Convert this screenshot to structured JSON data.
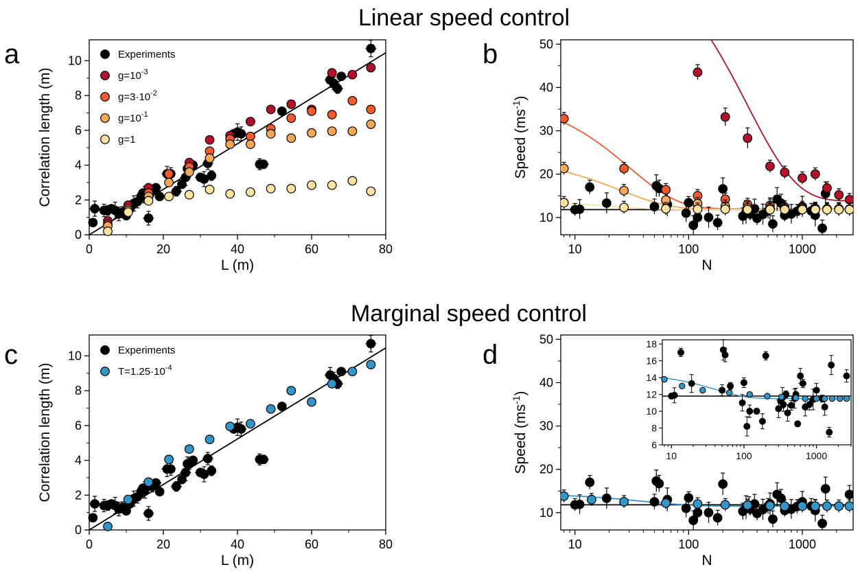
{
  "titles": {
    "top": "Linear speed control",
    "bottom": "Marginal speed control"
  },
  "colors": {
    "experiments": "#000000",
    "g_1e-3": "#b5112a",
    "g_3e-2": "#f05a2c",
    "g_1e-1": "#f6a857",
    "g_1": "#fbe29e",
    "t_1.25e-4": "#3396c8"
  },
  "panels": {
    "a": {
      "letter": "a",
      "xlabel": "L (m)",
      "ylabel": "Correlation length (m)",
      "xticks": [
        "0",
        "20",
        "40",
        "60",
        "80"
      ],
      "yticks": [
        "0",
        "2",
        "4",
        "6",
        "8",
        "10"
      ],
      "legend": [
        {
          "label": "Experiments"
        },
        {
          "label": "g=10",
          "sup": "-3"
        },
        {
          "label": "g=3·10",
          "sup": "-2"
        },
        {
          "label": "g=10",
          "sup": "-1"
        },
        {
          "label": "g=1"
        }
      ]
    },
    "b": {
      "letter": "b",
      "xlabel": "N",
      "ylabel": "Speed (ms",
      "ylabel_sup": "-1",
      "ylabel_end": ")",
      "xticks": [
        "10",
        "100",
        "1000"
      ],
      "yticks": [
        "10",
        "20",
        "30",
        "40",
        "50"
      ]
    },
    "c": {
      "letter": "c",
      "xlabel": "L (m)",
      "ylabel": "Correlation length (m)",
      "xticks": [
        "0",
        "20",
        "40",
        "60",
        "80"
      ],
      "yticks": [
        "0",
        "2",
        "4",
        "6",
        "8",
        "10"
      ],
      "legend": [
        {
          "label": "Experiments"
        },
        {
          "label": "T=1.25·10",
          "sup": "-4"
        }
      ]
    },
    "d": {
      "letter": "d",
      "xlabel": "N",
      "ylabel": "Speed (ms",
      "ylabel_sup": "-1",
      "ylabel_end": ")",
      "xticks": [
        "10",
        "100",
        "1000"
      ],
      "yticks": [
        "10",
        "20",
        "30",
        "40",
        "50"
      ],
      "inset": {
        "xticks": [
          "10",
          "100",
          "1000"
        ],
        "yticks": [
          "6",
          "8",
          "10",
          "12",
          "14",
          "16",
          "18"
        ]
      }
    }
  },
  "chart_data": [
    {
      "panel": "a",
      "type": "scatter",
      "xlabel": "L (m)",
      "ylabel": "Correlation length (m)",
      "xlim": [
        0,
        80
      ],
      "ylim": [
        0,
        11.2
      ],
      "fit_line": {
        "slope": 0.1307,
        "intercept": 0
      },
      "series": [
        {
          "name": "Experiments",
          "x": [
            1,
            1.5,
            4,
            5,
            6,
            7,
            8,
            9,
            10,
            11,
            12,
            13,
            14,
            14.5,
            15,
            16,
            17,
            18,
            19,
            21,
            22,
            23.5,
            25,
            26,
            26.5,
            27,
            28,
            30,
            31,
            32,
            33,
            39,
            40,
            41,
            46,
            47,
            52,
            65,
            66,
            67,
            68,
            76
          ],
          "y": [
            0.7,
            1.5,
            1.4,
            1.4,
            1.5,
            1.4,
            1.2,
            1.3,
            1.1,
            1.5,
            1.8,
            1.9,
            2.2,
            2.4,
            2.3,
            0.95,
            2.5,
            2.7,
            2.2,
            3.5,
            3.5,
            2.5,
            2.9,
            3.3,
            3.8,
            3.8,
            4.0,
            3.3,
            3.2,
            4.1,
            3.4,
            5.8,
            5.9,
            5.8,
            4.05,
            4.05,
            7.1,
            8.9,
            8.7,
            8.4,
            9.1,
            10.7
          ]
        },
        {
          "name": "g=10^-3",
          "x": [
            5,
            10.5,
            16,
            21.5,
            27,
            32.5,
            38,
            43.5,
            49,
            54.5,
            60,
            65.5,
            71,
            76
          ],
          "y": [
            0.8,
            1.7,
            2.7,
            3.5,
            4.15,
            5.45,
            5.7,
            6.5,
            7.2,
            7.5,
            7.2,
            9.3,
            9.2,
            9.6
          ]
        },
        {
          "name": "g=3·10^-2",
          "x": [
            5,
            10.5,
            16,
            21.5,
            27,
            32.5,
            38,
            43.5,
            49,
            54.5,
            60,
            65.5,
            71,
            76
          ],
          "y": [
            0.6,
            1.5,
            2.4,
            3.5,
            3.9,
            4.8,
            5.5,
            5.65,
            6.1,
            6.7,
            7.1,
            6.9,
            7.7,
            7.2
          ]
        },
        {
          "name": "g=10^-1",
          "x": [
            5,
            10.5,
            16,
            21.5,
            27,
            32.5,
            38,
            43.5,
            49,
            54.5,
            60,
            65.5,
            71,
            76
          ],
          "y": [
            0.5,
            1.4,
            2.2,
            3.0,
            3.6,
            4.4,
            5.2,
            5.2,
            5.8,
            5.55,
            5.85,
            5.95,
            5.95,
            6.35
          ]
        },
        {
          "name": "g=1",
          "x": [
            5,
            10.5,
            16,
            21.5,
            27,
            32.5,
            38,
            43.5,
            49,
            54.5,
            60,
            65.5,
            71,
            76
          ],
          "y": [
            0.2,
            1.3,
            1.95,
            2.2,
            2.3,
            2.6,
            2.35,
            2.45,
            2.65,
            2.65,
            2.85,
            2.85,
            3.1,
            2.5
          ]
        }
      ]
    },
    {
      "panel": "b",
      "type": "scatter",
      "xscale": "log",
      "xlabel": "N",
      "ylabel": "Speed (ms-1)",
      "xlim": [
        7.5,
        2800
      ],
      "ylim": [
        6,
        51
      ],
      "fit_line_y": 11.8,
      "series": [
        {
          "name": "Experiments",
          "x": [
            10,
            11,
            13.5,
            19,
            50,
            52,
            55,
            65,
            95,
            100,
            110,
            120,
            150,
            180,
            200,
            300,
            320,
            340,
            350,
            380,
            400,
            450,
            500,
            520,
            550,
            600,
            650,
            700,
            800,
            900,
            1000,
            1200,
            1300,
            1500,
            1600
          ],
          "y": [
            11.8,
            11.9,
            17.0,
            13.3,
            12.5,
            17.3,
            16.7,
            13.0,
            11.0,
            13.4,
            8.2,
            10.0,
            10.0,
            8.8,
            16.6,
            10.3,
            11.2,
            11.6,
            10.8,
            12.0,
            9.8,
            10.7,
            11.5,
            12.0,
            8.5,
            14.2,
            13.3,
            10.5,
            10.8,
            11.4,
            12.5,
            11.5,
            10.5,
            7.5,
            15.5
          ]
        },
        {
          "name": "g=10^-3",
          "x": [
            120,
            210,
            330,
            520,
            700,
            1000,
            1300,
            1650,
            2100,
            2600
          ],
          "y": [
            43.5,
            33.2,
            28.3,
            21.8,
            20.4,
            19.1,
            20.0,
            16.8,
            15.2,
            14.1
          ]
        },
        {
          "name": "g=3·10^-2",
          "x": [
            8,
            27,
            63,
            120,
            210,
            330,
            520,
            700,
            1000,
            1300,
            1650,
            2100,
            2600
          ],
          "y": [
            32.8,
            21.3,
            16.4,
            15.0,
            14.2,
            13.0,
            12.8,
            12.4,
            12.3,
            12.1,
            12.0,
            12.0,
            11.9
          ]
        },
        {
          "name": "g=10^-1",
          "x": [
            8,
            27,
            63,
            120,
            210,
            330,
            520,
            700,
            1000,
            1300,
            1650,
            2100,
            2600
          ],
          "y": [
            21.3,
            16.2,
            14.0,
            13.2,
            12.6,
            12.2,
            12.1,
            12.0,
            12.0,
            11.9,
            11.9,
            11.9,
            11.9
          ]
        },
        {
          "name": "g=1",
          "x": [
            8,
            27,
            63,
            120,
            210,
            330,
            520,
            700,
            1000,
            1300,
            1650,
            2100,
            2600
          ],
          "y": [
            13.4,
            12.3,
            12.0,
            11.9,
            11.9,
            11.8,
            11.8,
            11.8,
            11.8,
            11.8,
            11.8,
            11.8,
            11.8
          ]
        }
      ]
    },
    {
      "panel": "c",
      "type": "scatter",
      "xlabel": "L (m)",
      "ylabel": "Correlation length (m)",
      "xlim": [
        0,
        80
      ],
      "ylim": [
        0,
        11.2
      ],
      "fit_line": {
        "slope": 0.1307,
        "intercept": 0
      },
      "series": [
        {
          "name": "Experiments",
          "x": [
            1,
            1.5,
            4,
            5,
            6,
            7,
            8,
            9,
            10,
            11,
            12,
            13,
            14,
            14.5,
            15,
            16,
            17,
            18,
            19,
            21,
            22,
            23.5,
            25,
            26,
            26.5,
            27,
            28,
            30,
            31,
            32,
            33,
            39,
            40,
            41,
            46,
            47,
            52,
            65,
            66,
            67,
            68,
            76
          ],
          "y": [
            0.7,
            1.5,
            1.4,
            1.4,
            1.5,
            1.4,
            1.2,
            1.3,
            1.1,
            1.5,
            1.8,
            1.9,
            2.2,
            2.4,
            2.3,
            0.95,
            2.5,
            2.7,
            2.2,
            3.5,
            3.5,
            2.5,
            2.9,
            3.3,
            3.8,
            3.8,
            4.0,
            3.3,
            3.2,
            4.1,
            3.4,
            5.8,
            5.9,
            5.8,
            4.05,
            4.05,
            7.1,
            8.9,
            8.7,
            8.4,
            9.1,
            10.7
          ]
        },
        {
          "name": "T=1.25·10^-4",
          "x": [
            5,
            10.5,
            16,
            21.5,
            27,
            32.5,
            38,
            43.5,
            49,
            54.5,
            60,
            65.5,
            71,
            76
          ],
          "y": [
            0.2,
            1.75,
            2.75,
            4.05,
            4.65,
            5.2,
            5.95,
            6.1,
            6.95,
            8.0,
            7.35,
            8.4,
            9.1,
            9.5
          ]
        }
      ]
    },
    {
      "panel": "d",
      "type": "scatter",
      "xscale": "log",
      "xlabel": "N",
      "ylabel": "Speed (ms-1)",
      "xlim": [
        7.5,
        2800
      ],
      "ylim": [
        6,
        51
      ],
      "fit_line_y": 11.8,
      "series": [
        {
          "name": "Experiments",
          "x": [
            10,
            11,
            13.5,
            19,
            50,
            52,
            55,
            65,
            95,
            100,
            110,
            120,
            150,
            180,
            200,
            300,
            320,
            340,
            350,
            380,
            400,
            450,
            500,
            520,
            550,
            600,
            650,
            700,
            800,
            900,
            1000,
            1200,
            1300,
            1500,
            1600,
            2600
          ],
          "y": [
            11.8,
            11.9,
            17.0,
            13.3,
            12.5,
            17.3,
            16.7,
            13.0,
            11.0,
            13.4,
            8.2,
            10.0,
            10.0,
            8.8,
            16.6,
            10.3,
            11.2,
            11.6,
            10.8,
            12.0,
            9.8,
            10.7,
            11.5,
            12.0,
            8.5,
            14.2,
            13.3,
            10.5,
            10.8,
            11.4,
            12.5,
            11.5,
            10.5,
            7.5,
            15.5,
            14.2
          ]
        },
        {
          "name": "T=1.25·10^-4",
          "x": [
            8,
            14,
            27,
            63,
            120,
            210,
            330,
            520,
            700,
            1000,
            1300,
            1650,
            2100,
            2600
          ],
          "y": [
            13.8,
            13.0,
            12.5,
            12.2,
            12.0,
            11.8,
            11.7,
            11.6,
            11.5,
            11.5,
            11.5,
            11.5,
            11.5,
            11.5
          ]
        }
      ],
      "inset": {
        "xlim": [
          7.5,
          3000
        ],
        "ylim": [
          6,
          18.5
        ],
        "xticks": [
          "10",
          "100",
          "1000"
        ],
        "yticks": [
          "6",
          "8",
          "10",
          "12",
          "14",
          "16",
          "18"
        ]
      }
    }
  ]
}
